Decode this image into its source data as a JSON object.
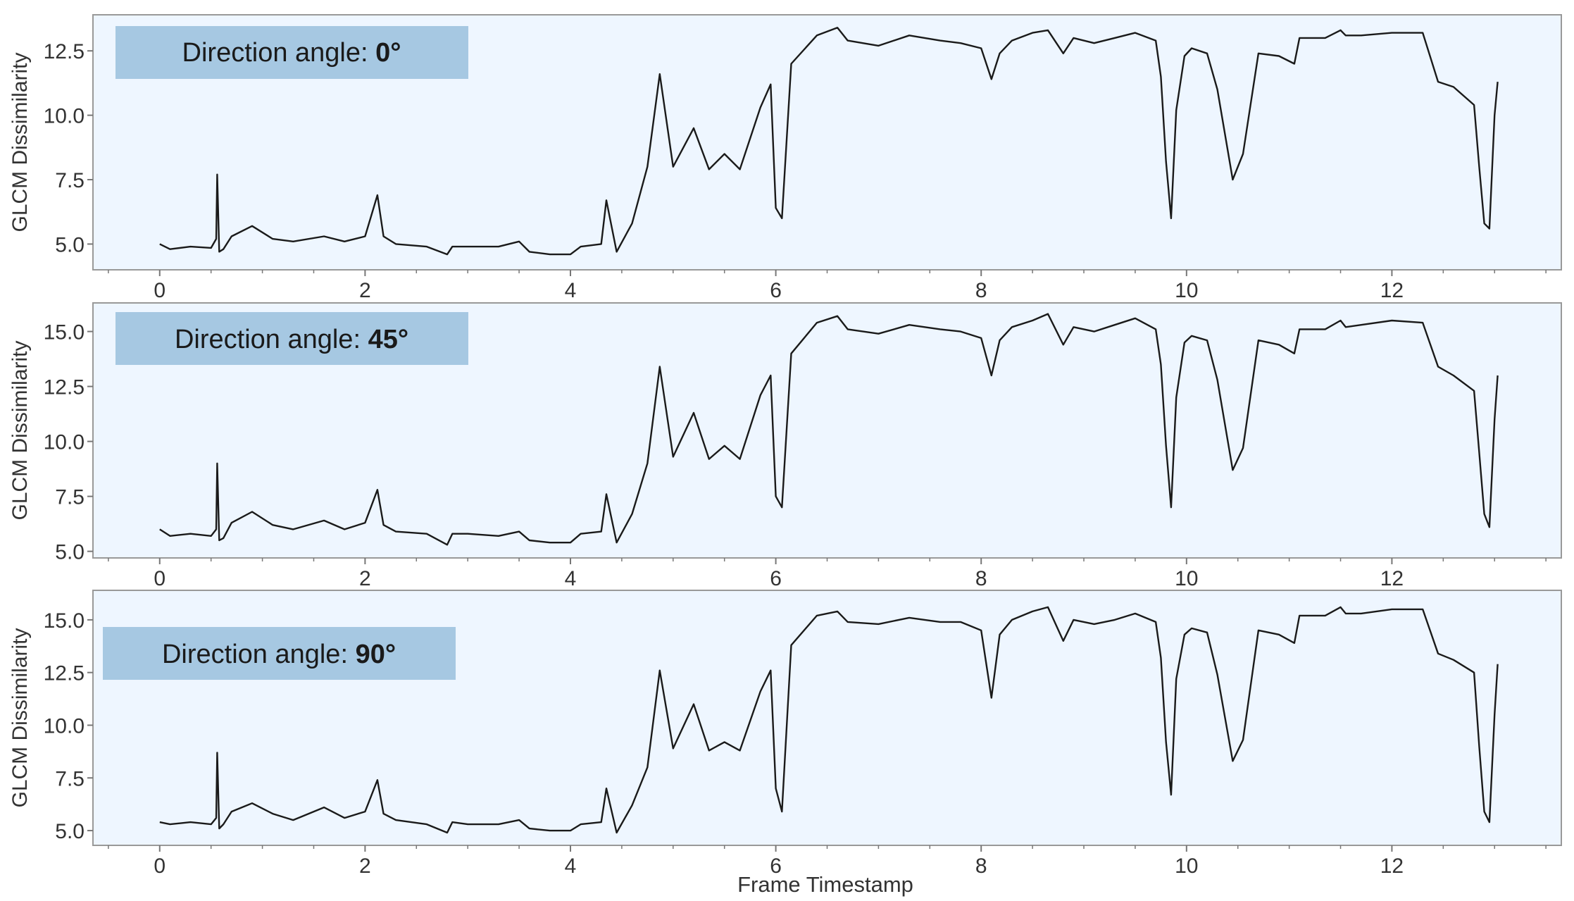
{
  "figure": {
    "xlabel": "Frame Timestamp",
    "ylabel": "GLCM Dissimilarity",
    "xticks": [
      "0",
      "2",
      "4",
      "6",
      "8",
      "10",
      "12"
    ],
    "colors": {
      "plot_background": "#eef6ff",
      "label_box": "#a6c8e2",
      "line": "#1a1a1a",
      "axis": "#999999"
    }
  },
  "chart_data": [
    {
      "type": "line",
      "label_prefix": "Direction angle: ",
      "label_value": "0°",
      "xlabel": "",
      "ylabel": "GLCM Dissimilarity",
      "xlim": [
        -0.65,
        13.65
      ],
      "ylim": [
        4.0,
        13.9
      ],
      "yticks": [
        "5.0",
        "7.5",
        "10.0",
        "12.5"
      ],
      "xticks": [
        "0",
        "2",
        "4",
        "6",
        "8",
        "10",
        "12"
      ],
      "grid": false,
      "series": [
        {
          "x": [
            0.0,
            0.1,
            0.3,
            0.5,
            0.55,
            0.56,
            0.58,
            0.62,
            0.7,
            0.9,
            1.1,
            1.3,
            1.6,
            1.8,
            2.0,
            2.12,
            2.18,
            2.3,
            2.6,
            2.8,
            2.85,
            3.0,
            3.3,
            3.5,
            3.6,
            3.8,
            4.0,
            4.1,
            4.3,
            4.35,
            4.45,
            4.6,
            4.75,
            4.87,
            5.0,
            5.2,
            5.35,
            5.5,
            5.65,
            5.85,
            5.95,
            6.0,
            6.06,
            6.15,
            6.4,
            6.6,
            6.7,
            7.0,
            7.3,
            7.6,
            7.8,
            8.0,
            8.1,
            8.18,
            8.3,
            8.5,
            8.65,
            8.8,
            8.9,
            9.1,
            9.3,
            9.5,
            9.7,
            9.75,
            9.8,
            9.85,
            9.9,
            9.98,
            10.05,
            10.2,
            10.3,
            10.45,
            10.55,
            10.7,
            10.9,
            11.05,
            11.1,
            11.35,
            11.5,
            11.55,
            11.7,
            12.0,
            12.3,
            12.45,
            12.6,
            12.8,
            12.85,
            12.9,
            12.95,
            13.0,
            13.03
          ],
          "y": [
            5.0,
            4.8,
            4.9,
            4.85,
            5.2,
            7.7,
            4.7,
            4.8,
            5.3,
            5.7,
            5.2,
            5.1,
            5.3,
            5.1,
            5.3,
            6.9,
            5.3,
            5.0,
            4.9,
            4.6,
            4.9,
            4.9,
            4.9,
            5.1,
            4.7,
            4.6,
            4.6,
            4.9,
            5.0,
            6.7,
            4.7,
            5.8,
            8.0,
            11.6,
            8.0,
            9.5,
            7.9,
            8.5,
            7.9,
            10.3,
            11.2,
            6.4,
            6.0,
            12.0,
            13.1,
            13.4,
            12.9,
            12.7,
            13.1,
            12.9,
            12.8,
            12.6,
            11.4,
            12.4,
            12.9,
            13.2,
            13.3,
            12.4,
            13.0,
            12.8,
            13.0,
            13.2,
            12.9,
            11.5,
            8.2,
            6.0,
            10.2,
            12.3,
            12.6,
            12.4,
            11.0,
            7.5,
            8.5,
            12.4,
            12.3,
            12.0,
            13.0,
            13.0,
            13.3,
            13.1,
            13.1,
            13.2,
            13.2,
            11.3,
            11.1,
            10.4,
            8.0,
            5.8,
            5.6,
            10.0,
            11.3
          ]
        }
      ]
    },
    {
      "type": "line",
      "label_prefix": "Direction angle: ",
      "label_value": "45°",
      "xlabel": "",
      "ylabel": "GLCM Dissimilarity",
      "xlim": [
        -0.65,
        13.65
      ],
      "ylim": [
        4.7,
        16.3
      ],
      "yticks": [
        "5.0",
        "7.5",
        "10.0",
        "12.5",
        "15.0"
      ],
      "xticks": [
        "0",
        "2",
        "4",
        "6",
        "8",
        "10",
        "12"
      ],
      "grid": false,
      "series": [
        {
          "x": [
            0.0,
            0.1,
            0.3,
            0.5,
            0.55,
            0.56,
            0.58,
            0.62,
            0.7,
            0.9,
            1.1,
            1.3,
            1.6,
            1.8,
            2.0,
            2.12,
            2.18,
            2.3,
            2.6,
            2.8,
            2.85,
            3.0,
            3.3,
            3.5,
            3.6,
            3.8,
            4.0,
            4.1,
            4.3,
            4.35,
            4.45,
            4.6,
            4.75,
            4.87,
            5.0,
            5.2,
            5.35,
            5.5,
            5.65,
            5.85,
            5.95,
            6.0,
            6.06,
            6.15,
            6.4,
            6.6,
            6.7,
            7.0,
            7.3,
            7.6,
            7.8,
            8.0,
            8.1,
            8.18,
            8.3,
            8.5,
            8.65,
            8.8,
            8.9,
            9.1,
            9.3,
            9.5,
            9.7,
            9.75,
            9.8,
            9.85,
            9.9,
            9.98,
            10.05,
            10.2,
            10.3,
            10.45,
            10.55,
            10.7,
            10.9,
            11.05,
            11.1,
            11.35,
            11.5,
            11.55,
            11.7,
            12.0,
            12.3,
            12.45,
            12.6,
            12.8,
            12.85,
            12.9,
            12.95,
            13.0,
            13.03
          ],
          "y": [
            6.0,
            5.7,
            5.8,
            5.7,
            6.0,
            9.0,
            5.5,
            5.6,
            6.3,
            6.8,
            6.2,
            6.0,
            6.4,
            6.0,
            6.3,
            7.8,
            6.2,
            5.9,
            5.8,
            5.3,
            5.8,
            5.8,
            5.7,
            5.9,
            5.5,
            5.4,
            5.4,
            5.8,
            5.9,
            7.6,
            5.4,
            6.7,
            9.0,
            13.4,
            9.3,
            11.3,
            9.2,
            9.8,
            9.2,
            12.1,
            13.0,
            7.5,
            7.0,
            14.0,
            15.4,
            15.7,
            15.1,
            14.9,
            15.3,
            15.1,
            15.0,
            14.7,
            13.0,
            14.6,
            15.2,
            15.5,
            15.8,
            14.4,
            15.2,
            15.0,
            15.3,
            15.6,
            15.1,
            13.5,
            9.8,
            7.0,
            12.0,
            14.5,
            14.8,
            14.6,
            12.8,
            8.7,
            9.7,
            14.6,
            14.4,
            14.0,
            15.1,
            15.1,
            15.5,
            15.2,
            15.3,
            15.5,
            15.4,
            13.4,
            13.0,
            12.3,
            9.5,
            6.7,
            6.1,
            11.0,
            13.0
          ]
        }
      ]
    },
    {
      "type": "line",
      "label_prefix": "Direction angle: ",
      "label_value": "90°",
      "xlabel": "Frame Timestamp",
      "ylabel": "GLCM Dissimilarity",
      "xlim": [
        -0.65,
        13.65
      ],
      "ylim": [
        4.3,
        16.4
      ],
      "yticks": [
        "5.0",
        "7.5",
        "10.0",
        "12.5",
        "15.0"
      ],
      "xticks": [
        "0",
        "2",
        "4",
        "6",
        "8",
        "10",
        "12"
      ],
      "grid": false,
      "series": [
        {
          "x": [
            0.0,
            0.1,
            0.3,
            0.5,
            0.55,
            0.56,
            0.58,
            0.62,
            0.7,
            0.9,
            1.1,
            1.3,
            1.6,
            1.8,
            2.0,
            2.12,
            2.18,
            2.3,
            2.6,
            2.8,
            2.85,
            3.0,
            3.3,
            3.5,
            3.6,
            3.8,
            4.0,
            4.1,
            4.3,
            4.35,
            4.45,
            4.6,
            4.75,
            4.87,
            5.0,
            5.2,
            5.35,
            5.5,
            5.65,
            5.85,
            5.95,
            6.0,
            6.06,
            6.15,
            6.4,
            6.6,
            6.7,
            7.0,
            7.3,
            7.6,
            7.8,
            8.0,
            8.1,
            8.18,
            8.3,
            8.5,
            8.65,
            8.8,
            8.9,
            9.1,
            9.3,
            9.5,
            9.7,
            9.75,
            9.8,
            9.85,
            9.9,
            9.98,
            10.05,
            10.2,
            10.3,
            10.45,
            10.55,
            10.7,
            10.9,
            11.05,
            11.1,
            11.35,
            11.5,
            11.55,
            11.7,
            12.0,
            12.3,
            12.45,
            12.6,
            12.8,
            12.85,
            12.9,
            12.95,
            13.0,
            13.03
          ],
          "y": [
            5.4,
            5.3,
            5.4,
            5.3,
            5.6,
            8.7,
            5.1,
            5.3,
            5.9,
            6.3,
            5.8,
            5.5,
            6.1,
            5.6,
            5.9,
            7.4,
            5.8,
            5.5,
            5.3,
            4.9,
            5.4,
            5.3,
            5.3,
            5.5,
            5.1,
            5.0,
            5.0,
            5.3,
            5.4,
            7.0,
            4.9,
            6.2,
            8.0,
            12.6,
            8.9,
            11.0,
            8.8,
            9.2,
            8.8,
            11.6,
            12.6,
            7.0,
            5.9,
            13.8,
            15.2,
            15.4,
            14.9,
            14.8,
            15.1,
            14.9,
            14.9,
            14.5,
            11.3,
            14.3,
            15.0,
            15.4,
            15.6,
            14.0,
            15.0,
            14.8,
            15.0,
            15.3,
            14.9,
            13.2,
            9.2,
            6.7,
            12.2,
            14.3,
            14.6,
            14.4,
            12.4,
            8.3,
            9.3,
            14.5,
            14.3,
            13.9,
            15.2,
            15.2,
            15.6,
            15.3,
            15.3,
            15.5,
            15.5,
            13.4,
            13.1,
            12.5,
            9.0,
            5.9,
            5.4,
            10.5,
            12.9
          ]
        }
      ]
    }
  ]
}
